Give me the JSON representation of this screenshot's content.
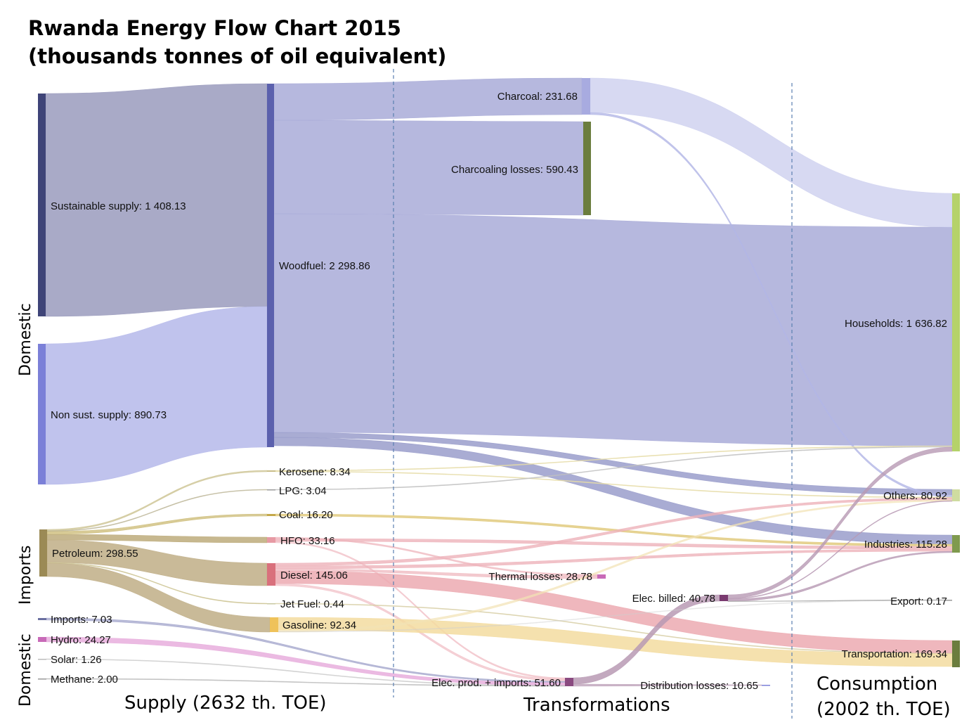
{
  "title": {
    "line1": "Rwanda Energy Flow Chart 2015",
    "line2": "(thousands tonnes of oil equivalent)"
  },
  "column_labels": {
    "supply": "Supply (2632 th. TOE)",
    "transformations": "Transformations",
    "consumption_line1": "Consumption",
    "consumption_line2": "(2002 th. TOE)"
  },
  "side_labels": {
    "domestic_top": "Domestic",
    "imports": "Imports",
    "domestic_bottom": "Domestic"
  },
  "chart_data": {
    "type": "sankey",
    "nodes": [
      {
        "id": "sust",
        "label": "Sustainable supply: 1 408.13",
        "value": 1408.13,
        "color": "#3f4478"
      },
      {
        "id": "nonsust",
        "label": "Non sust. supply: 890.73",
        "value": 890.73,
        "color": "#7b80d8"
      },
      {
        "id": "petroleum",
        "label": "Petroleum: 298.55",
        "value": 298.55,
        "color": "#9b8a55"
      },
      {
        "id": "imports",
        "label": "Imports: 7.03",
        "value": 7.03,
        "color": "#6a6fa0"
      },
      {
        "id": "hydro",
        "label": "Hydro: 24.27",
        "value": 24.27,
        "color": "#c86ab8"
      },
      {
        "id": "solar",
        "label": "Solar: 1.26",
        "value": 1.26,
        "color": "#bbbbbb"
      },
      {
        "id": "methane",
        "label": "Methane: 2.00",
        "value": 2.0,
        "color": "#999999"
      },
      {
        "id": "woodfuel",
        "label": "Woodfuel: 2 298.86",
        "value": 2298.86,
        "color": "#5b60ad"
      },
      {
        "id": "kerosene",
        "label": "Kerosene: 8.34",
        "value": 8.34,
        "color": "#c8bd88"
      },
      {
        "id": "lpg",
        "label": "LPG: 3.04",
        "value": 3.04,
        "color": "#9a9a9a"
      },
      {
        "id": "coal",
        "label": "Coal: 16.20",
        "value": 16.2,
        "color": "#c4a84a"
      },
      {
        "id": "hfo",
        "label": "HFO: 33.16",
        "value": 33.16,
        "color": "#e79aa4"
      },
      {
        "id": "diesel",
        "label": "Diesel: 145.06",
        "value": 145.06,
        "color": "#d9707c"
      },
      {
        "id": "jetfuel",
        "label": "Jet Fuel: 0.44",
        "value": 0.44,
        "color": "#c8c8a0"
      },
      {
        "id": "gasoline",
        "label": "Gasoline: 92.34",
        "value": 92.34,
        "color": "#efc25a"
      },
      {
        "id": "charcoal",
        "label": "Charcoal: 231.68",
        "value": 231.68,
        "color": "#a8abe0"
      },
      {
        "id": "charlosses",
        "label": "Charcoaling losses: 590.43",
        "value": 590.43,
        "color": "#6b7d3e"
      },
      {
        "id": "thermal",
        "label": "Thermal losses: 28.78",
        "value": 28.78,
        "color": "#c86ab8"
      },
      {
        "id": "elecprod",
        "label": "Elec. prod. + imports: 51.60",
        "value": 51.6,
        "color": "#8a4a80"
      },
      {
        "id": "elecbilled",
        "label": "Elec. billed: 40.78",
        "value": 40.78,
        "color": "#7a3a70"
      },
      {
        "id": "distlosses",
        "label": "Distribution losses: 10.65",
        "value": 10.65,
        "color": "#7b80d8"
      },
      {
        "id": "households",
        "label": "Households: 1 636.82",
        "value": 1636.82,
        "color": "#b5d26a"
      },
      {
        "id": "others",
        "label": "Others: 80.92",
        "value": 80.92,
        "color": "#cfdca0"
      },
      {
        "id": "industries",
        "label": "Industries: 115.28",
        "value": 115.28,
        "color": "#7f9a4e"
      },
      {
        "id": "export",
        "label": "Export: 0.17",
        "value": 0.17,
        "color": "#999999"
      },
      {
        "id": "transportation",
        "label": "Transportation: 169.34",
        "value": 169.34,
        "color": "#6b7d3e"
      }
    ]
  }
}
